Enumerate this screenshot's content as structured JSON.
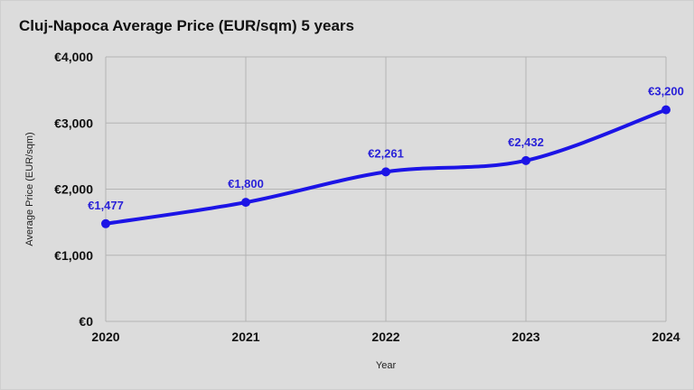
{
  "chart_data": {
    "type": "line",
    "title": "Cluj-Napoca Average Price (EUR/sqm) 5 years",
    "xlabel": "Year",
    "ylabel": "Average Price (EUR/sqm)",
    "categories": [
      "2020",
      "2021",
      "2022",
      "2023",
      "2024"
    ],
    "series": [
      {
        "values": [
          1477,
          1800,
          2261,
          2432,
          3200
        ]
      }
    ],
    "data_labels": [
      "€1,477",
      "€1,800",
      "€2,261",
      "€2,432",
      "€3,200"
    ],
    "ylim": [
      0,
      4000
    ],
    "yticks": [
      0,
      1000,
      2000,
      3000,
      4000
    ],
    "ytick_labels": [
      "€0",
      "€1,000",
      "€2,000",
      "€3,000",
      "€4,000"
    ],
    "grid": true,
    "smooth": true,
    "legend": "none",
    "colors": {
      "line": "#1c14e6",
      "label": "#2a22d8",
      "grid": "#b4b4b4",
      "background": "#dcdcdc"
    }
  }
}
